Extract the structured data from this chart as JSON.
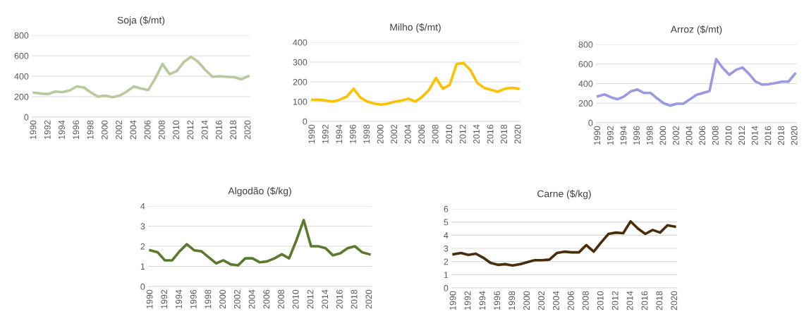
{
  "chart_data": [
    {
      "type": "line",
      "title": "Soja ($/mt)",
      "categories": [
        "1990",
        null,
        "1992",
        null,
        "1994",
        null,
        "1996",
        null,
        "1998",
        null,
        "2000",
        null,
        "2002",
        null,
        "2004",
        null,
        "2006",
        null,
        "2008",
        null,
        "2010",
        null,
        "2012",
        null,
        "2014",
        null,
        "2016",
        null,
        "2018",
        null,
        "2020"
      ],
      "series": [
        {
          "color": "#b9c99b",
          "values": [
            240,
            230,
            225,
            250,
            245,
            260,
            300,
            290,
            240,
            200,
            210,
            195,
            210,
            250,
            300,
            280,
            265,
            380,
            520,
            420,
            450,
            540,
            590,
            540,
            460,
            395,
            400,
            395,
            390,
            370,
            400
          ]
        }
      ],
      "ylim": [
        0,
        800
      ],
      "yticks": [
        0,
        200,
        400,
        600,
        800
      ],
      "grid": "y"
    },
    {
      "type": "line",
      "title": "Milho ($/mt)",
      "categories": [
        "1990",
        null,
        "1992",
        null,
        "1994",
        null,
        "1996",
        null,
        "1998",
        null,
        "2000",
        null,
        "2002",
        null,
        "2004",
        null,
        "2006",
        null,
        "2008",
        null,
        "2010",
        null,
        "2012",
        null,
        "2014",
        null,
        "2016",
        null,
        "2018",
        null,
        "2020"
      ],
      "series": [
        {
          "color": "#ffc000",
          "values": [
            110,
            110,
            105,
            100,
            110,
            125,
            165,
            120,
            100,
            90,
            85,
            90,
            100,
            105,
            115,
            100,
            125,
            160,
            220,
            165,
            185,
            290,
            295,
            260,
            195,
            170,
            160,
            150,
            165,
            170,
            165
          ]
        }
      ],
      "ylim": [
        0,
        400
      ],
      "yticks": [
        0,
        100,
        200,
        300,
        400
      ],
      "grid": "y"
    },
    {
      "type": "line",
      "title": "Arroz ($/mt)",
      "categories": [
        "1990",
        null,
        "1992",
        null,
        "1994",
        null,
        "1996",
        null,
        "1998",
        null,
        "2000",
        null,
        "2002",
        null,
        "2004",
        null,
        "2006",
        null,
        "2008",
        null,
        "2010",
        null,
        "2012",
        null,
        "2014",
        null,
        "2016",
        null,
        "2018",
        null,
        "2020"
      ],
      "series": [
        {
          "color": "#9a9ae0",
          "values": [
            270,
            290,
            260,
            240,
            270,
            320,
            340,
            305,
            305,
            250,
            200,
            175,
            195,
            195,
            240,
            285,
            305,
            325,
            650,
            560,
            490,
            540,
            565,
            500,
            420,
            390,
            395,
            405,
            420,
            420,
            500
          ]
        }
      ],
      "ylim": [
        0,
        800
      ],
      "yticks": [
        0,
        200,
        400,
        600,
        800
      ],
      "grid": "y"
    },
    {
      "type": "line",
      "title": "Algodão ($/kg)",
      "categories": [
        "1990",
        null,
        "1992",
        null,
        "1994",
        null,
        "1996",
        null,
        "1998",
        null,
        "2000",
        null,
        "2002",
        null,
        "2004",
        null,
        "2006",
        null,
        "2008",
        null,
        "2010",
        null,
        "2012",
        null,
        "2014",
        null,
        "2016",
        null,
        "2018",
        null,
        "2020"
      ],
      "series": [
        {
          "color": "#5b7a2b",
          "values": [
            1.8,
            1.7,
            1.3,
            1.3,
            1.75,
            2.1,
            1.8,
            1.75,
            1.45,
            1.15,
            1.3,
            1.1,
            1.05,
            1.4,
            1.4,
            1.2,
            1.25,
            1.4,
            1.6,
            1.4,
            2.3,
            3.3,
            2.0,
            2.0,
            1.9,
            1.55,
            1.65,
            1.9,
            2.0,
            1.7,
            1.6
          ]
        }
      ],
      "ylim": [
        0,
        4
      ],
      "yticks": [
        0,
        1,
        2,
        3,
        4
      ],
      "grid": "y"
    },
    {
      "type": "line",
      "title": "Carne ($/kg)",
      "categories": [
        "1990",
        null,
        "1992",
        null,
        "1994",
        null,
        "1996",
        null,
        "1998",
        null,
        "2000",
        null,
        "2002",
        null,
        "2004",
        null,
        "2006",
        null,
        "2008",
        null,
        "2010",
        null,
        "2012",
        null,
        "2014",
        null,
        "2016",
        null,
        "2018",
        null,
        "2020"
      ],
      "series": [
        {
          "color": "#4a2e0c",
          "values": [
            2.55,
            2.65,
            2.5,
            2.6,
            2.3,
            1.9,
            1.75,
            1.8,
            1.7,
            1.8,
            1.95,
            2.1,
            2.1,
            2.15,
            2.65,
            2.75,
            2.7,
            2.7,
            3.25,
            2.75,
            3.45,
            4.1,
            4.2,
            4.15,
            5.05,
            4.5,
            4.1,
            4.4,
            4.2,
            4.75,
            4.65
          ]
        }
      ],
      "ylim": [
        0,
        6
      ],
      "yticks": [
        0,
        1,
        2,
        3,
        4,
        5,
        6
      ],
      "grid": "y"
    }
  ]
}
